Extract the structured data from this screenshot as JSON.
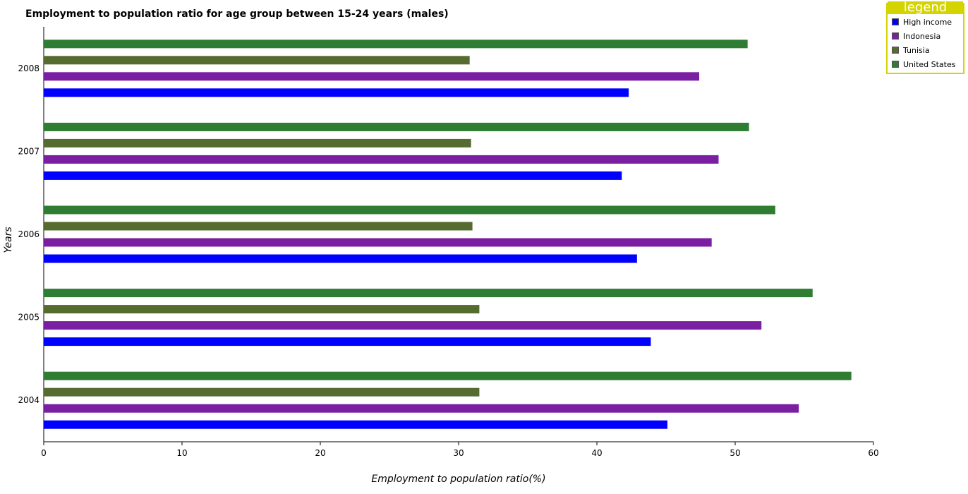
{
  "chart_data": {
    "type": "bar",
    "orientation": "horizontal",
    "title": "Employment to population ratio for age group between 15-24 years (males)",
    "xlabel": "Employment to population ratio(%)",
    "ylabel": "Years",
    "xlim": [
      0,
      60
    ],
    "xticks": [
      "0",
      "10",
      "20",
      "30",
      "40",
      "50",
      "60"
    ],
    "categories": [
      "2004",
      "2005",
      "2006",
      "2007",
      "2008"
    ],
    "series": [
      {
        "name": "High income",
        "color": "#0000ff",
        "values": [
          45.1,
          43.9,
          42.9,
          41.8,
          42.3
        ]
      },
      {
        "name": "Indonesia",
        "color": "#7b1fa2",
        "values": [
          54.6,
          51.9,
          48.3,
          48.8,
          47.4
        ]
      },
      {
        "name": "Tunisia",
        "color": "#556b2f",
        "values": [
          31.5,
          31.5,
          31.0,
          30.9,
          30.8
        ]
      },
      {
        "name": "United States",
        "color": "#2e7d32",
        "values": [
          58.4,
          55.6,
          52.9,
          51.0,
          50.9
        ]
      }
    ],
    "legend": {
      "title": "legend",
      "position": "top-right"
    },
    "grid": false
  }
}
